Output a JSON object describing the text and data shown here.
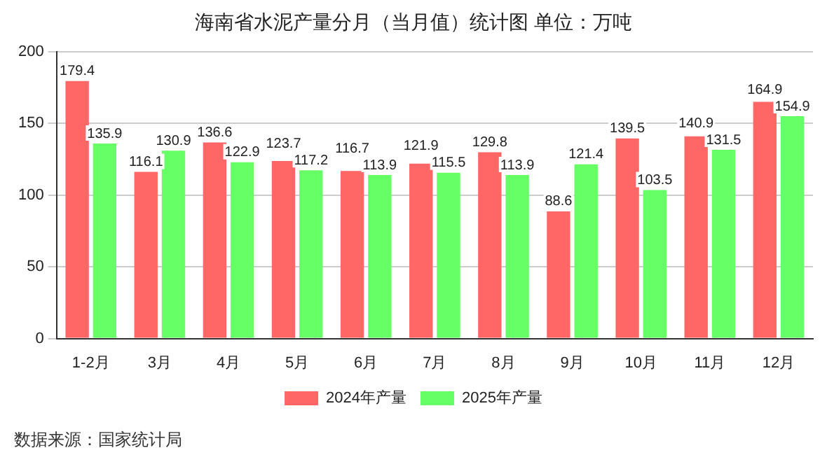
{
  "chart_data": {
    "type": "bar",
    "title": "海南省水泥产量分月（当月值）统计图 单位：万吨",
    "categories": [
      "1-2月",
      "3月",
      "4月",
      "5月",
      "6月",
      "7月",
      "8月",
      "9月",
      "10月",
      "11月",
      "12月"
    ],
    "series": [
      {
        "name": "2024年产量",
        "color": "#ff6666",
        "values": [
          179.4,
          116.1,
          136.6,
          123.7,
          116.7,
          121.9,
          129.8,
          88.6,
          139.5,
          140.9,
          164.9
        ]
      },
      {
        "name": "2025年产量",
        "color": "#66ff66",
        "values": [
          135.9,
          130.9,
          122.9,
          117.2,
          113.9,
          115.5,
          113.9,
          121.4,
          103.5,
          131.5,
          154.9
        ]
      }
    ],
    "ylim": [
      0,
      200
    ],
    "yticks": [
      0,
      50,
      100,
      150,
      200
    ],
    "grid": "y",
    "legend": "bottom",
    "data_labels": true,
    "annotations": [
      "数据来源：国家统计局"
    ]
  }
}
